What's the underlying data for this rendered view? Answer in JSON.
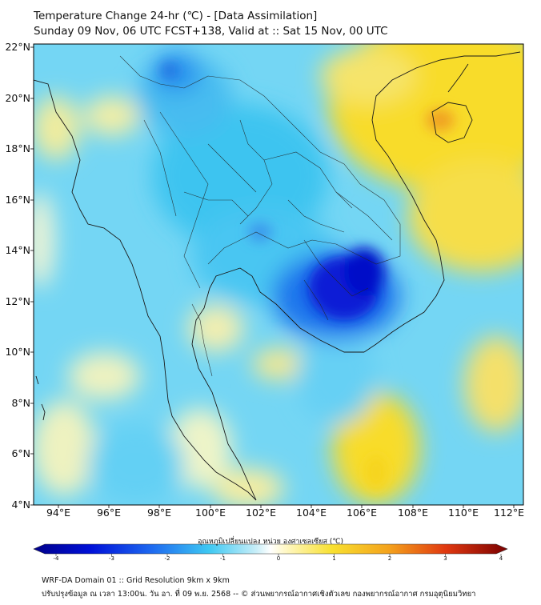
{
  "title_line1": "Temperature Change 24-hr (℃) - [Data Assimilation]",
  "title_line2": "Sunday 09 Nov, 06 UTC FCST+138, Valid at :: Sat 15 Nov, 00 UTC",
  "lat_labels": [
    "22°N",
    "20°N",
    "18°N",
    "16°N",
    "14°N",
    "12°N",
    "10°N",
    "8°N",
    "6°N",
    "4°N"
  ],
  "lon_labels": [
    "94°E",
    "96°E",
    "98°E",
    "100°E",
    "102°E",
    "104°E",
    "106°E",
    "108°E",
    "110°E",
    "112°E"
  ],
  "colorbar": {
    "title": "อุณหภูมิเปลี่ยนแปลง หน่วย องศาเซลเซียส (℃)",
    "ticks": [
      "-4",
      "-3",
      "-2",
      "-1",
      "0",
      "1",
      "2",
      "3",
      "4"
    ],
    "min": -4,
    "max": 4
  },
  "footer_line1": "WRF-DA Domain 01 :: Grid Resolution 9km x 9km",
  "footer_line2": "ปรับปรุงข้อมูล ณ เวลา 13:00น. วัน อา. ที่ 09 พ.ย. 2568 -- © ส่วนพยากรณ์อากาศเชิงตัวเลข กองพยากรณ์อากาศ กรมอุตุนิยมวิทยา",
  "colors": {
    "deep_blue": "#0a1bd6",
    "cyan": "#3ec4f0",
    "light": "#eaf6fb",
    "yellow": "#f8dc2a",
    "orange": "#f0a020",
    "dark_red": "#7a0000"
  }
}
